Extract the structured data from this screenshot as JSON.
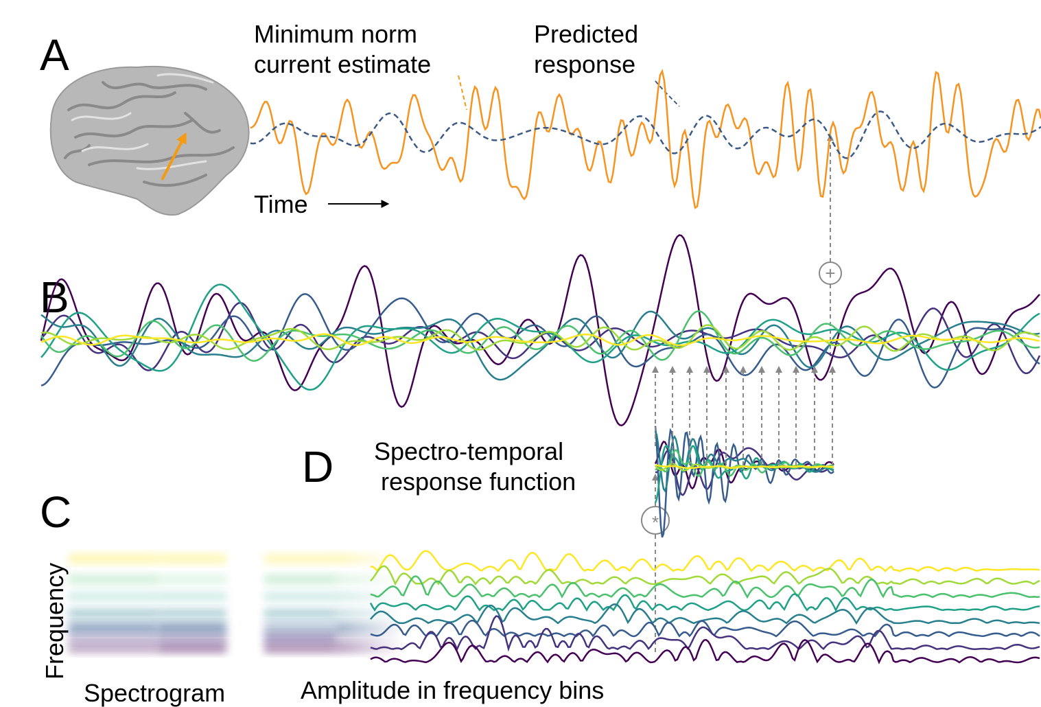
{
  "panel_a": {
    "label": "A",
    "source_label": [
      "Minimum norm",
      "current estimate"
    ],
    "prediction_label": [
      "Predicted",
      "response"
    ],
    "time_label": "Time"
  },
  "panel_b": {
    "label": "B",
    "sum_operator": "+"
  },
  "panel_c": {
    "label": "C",
    "y_label": "Frequency",
    "spectrogram_label": "Spectrogram",
    "bins_label": "Amplitude in frequency bins"
  },
  "panel_d": {
    "label": "D",
    "title": [
      "Spectro-temporal",
      "response function"
    ],
    "convolution_operator": "*"
  }
}
